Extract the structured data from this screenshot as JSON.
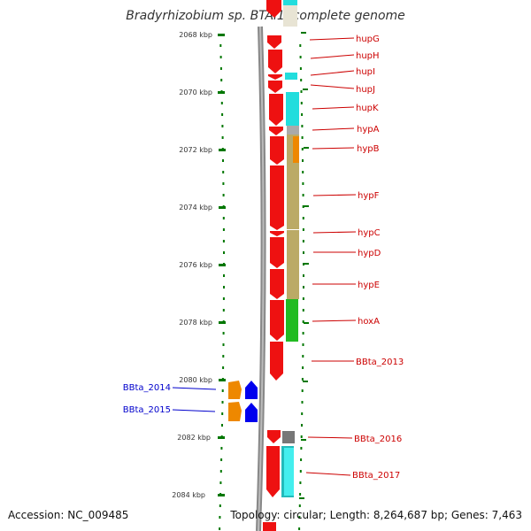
{
  "title": "Bradyrhizobium sp. BTAi1, complete genome",
  "accession_text": "Accession: NC_009485",
  "topology_text": "Topology: circular; Length: 8,264,687 bp; Genes: 7,463",
  "scale_labels": [
    "2068 kbp",
    "2070 kbp",
    "2072 kbp",
    "2074 kbp",
    "2076 kbp",
    "2078 kbp",
    "2080 kbp",
    "2082 kbp",
    "2084 kbp"
  ],
  "gene_labels_right": [
    "hupG",
    "hupH",
    "hupI",
    "hupJ",
    "hupK",
    "hypA",
    "hypB",
    "hypF",
    "hypC",
    "hypD",
    "hypE",
    "hoxA",
    "BBta_2013",
    "BBta_2016",
    "BBta_2017"
  ],
  "gene_labels_left": [
    "BBta_2014",
    "BBta_2015"
  ],
  "colors": {
    "label_red": "#cc0000",
    "label_blue": "#0000cc",
    "gene_red": "#ee1111",
    "gene_blue": "#0000ee",
    "gene_orange": "#ee8800",
    "cyan": "#22dddd",
    "khaki": "#bbaa66",
    "green": "#22bb22",
    "gray": "#777777",
    "scale_green": "#007700",
    "backbone": "#888888"
  }
}
